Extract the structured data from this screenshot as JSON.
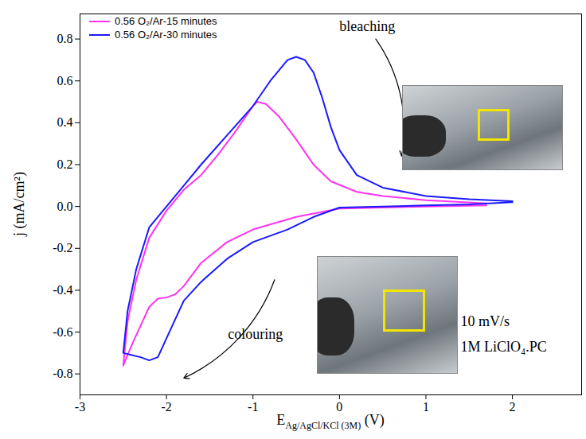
{
  "chart_data": {
    "type": "line",
    "xlabel": {
      "main": "E",
      "sub": "Ag/AgCl/KCl (3M)",
      "unit": "(V)"
    },
    "ylabel": "j (mA/cm²)",
    "xlim": [
      -3,
      2.8
    ],
    "xticks": [
      -3,
      -2,
      -1,
      0,
      1,
      2
    ],
    "ylim": [
      -0.9,
      0.92
    ],
    "yticks": [
      -0.8,
      -0.6,
      -0.4,
      -0.2,
      {
        "value": 0,
        "label": "0.0"
      },
      0.2,
      0.4,
      0.6,
      0.8
    ],
    "grid": false,
    "legend": "top-left",
    "series": [
      {
        "name": "0.56 O₂/Ar-15 minutes",
        "color": "#ff33f0",
        "x": [
          1.7,
          1.0,
          0.5,
          0,
          -0.5,
          -1.0,
          -1.3,
          -1.6,
          -1.8,
          -1.9,
          -2.0,
          -2.1,
          -2.2,
          -2.3,
          -2.4,
          -2.5,
          -2.45,
          -2.35,
          -2.2,
          -2.0,
          -1.8,
          -1.6,
          -1.4,
          -1.2,
          -1.0,
          -0.95,
          -0.85,
          -0.7,
          -0.5,
          -0.3,
          -0.1,
          0.2,
          0.5,
          1.0,
          1.7
        ],
        "values": [
          0.005,
          0.0,
          -0.005,
          -0.01,
          -0.05,
          -0.11,
          -0.17,
          -0.27,
          -0.38,
          -0.42,
          -0.435,
          -0.44,
          -0.48,
          -0.57,
          -0.66,
          -0.76,
          -0.55,
          -0.35,
          -0.15,
          -0.02,
          0.08,
          0.15,
          0.25,
          0.36,
          0.48,
          0.5,
          0.49,
          0.43,
          0.32,
          0.2,
          0.12,
          0.07,
          0.05,
          0.03,
          0.015
        ]
      },
      {
        "name": "0.56 O₂/Ar-30 minutes",
        "color": "#1a1aff",
        "x": [
          2.0,
          1.5,
          1.0,
          0.5,
          0,
          -0.3,
          -0.6,
          -1.0,
          -1.3,
          -1.6,
          -1.8,
          -2.0,
          -2.1,
          -2.2,
          -2.3,
          -2.4,
          -2.5,
          -2.45,
          -2.35,
          -2.2,
          -2.0,
          -1.8,
          -1.6,
          -1.3,
          -1.0,
          -0.8,
          -0.6,
          -0.5,
          -0.4,
          -0.3,
          -0.2,
          -0.1,
          0,
          0.2,
          0.5,
          1.0,
          1.5,
          2.0
        ],
        "values": [
          0.02,
          0.01,
          0.005,
          0.0,
          -0.005,
          -0.05,
          -0.11,
          -0.17,
          -0.25,
          -0.36,
          -0.45,
          -0.63,
          -0.72,
          -0.735,
          -0.72,
          -0.71,
          -0.7,
          -0.5,
          -0.3,
          -0.1,
          0.0,
          0.1,
          0.2,
          0.34,
          0.48,
          0.6,
          0.7,
          0.715,
          0.7,
          0.64,
          0.52,
          0.38,
          0.27,
          0.15,
          0.09,
          0.05,
          0.035,
          0.025
        ]
      }
    ],
    "annotations": [
      {
        "text": "bleaching",
        "x": 0.0,
        "y": 0.86,
        "arrow": {
          "x1": 0.42,
          "y1": 0.8,
          "x2": 0.72,
          "y2": 0.24
        }
      },
      {
        "text": "colouring",
        "x": -1.29,
        "y": -0.61,
        "arrow": {
          "x1": -0.75,
          "y1": -0.35,
          "x2": -1.8,
          "y2": -0.82
        }
      },
      {
        "text": "10 mV/s",
        "x": 1.4,
        "y": -0.55
      },
      {
        "text": "1M LiClO₄.PC",
        "x": 1.4,
        "y": -0.67
      }
    ]
  }
}
